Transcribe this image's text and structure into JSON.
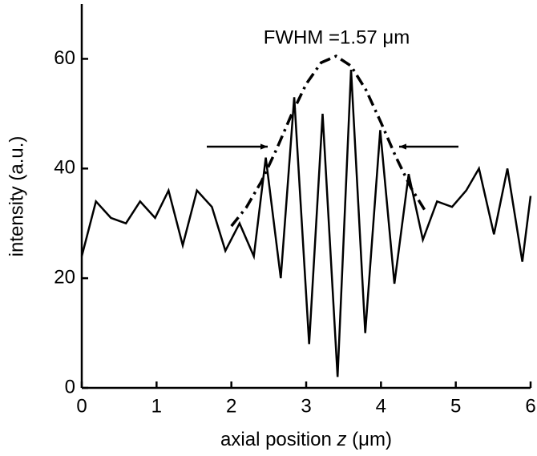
{
  "chart_data": {
    "type": "line",
    "x_label": [
      "axial position ",
      "z",
      " (μm)"
    ],
    "y_label": "intensity (a.u.)",
    "annotation": "FWHM =1.57 μm",
    "xlim": [
      0,
      6
    ],
    "xticks": [
      0,
      1,
      2,
      3,
      4,
      5,
      6
    ],
    "ylim": [
      0,
      70
    ],
    "yticks": [
      0,
      20,
      40,
      60
    ],
    "grid": false,
    "series": [
      {
        "style": "solid",
        "color": "#000000",
        "x": [
          0,
          0.19,
          0.39,
          0.59,
          0.78,
          0.98,
          1.16,
          1.35,
          1.54,
          1.74,
          1.92,
          2.11,
          2.3,
          2.46,
          2.66,
          2.84,
          3.04,
          3.22,
          3.42,
          3.6,
          3.79,
          3.99,
          4.18,
          4.37,
          4.56,
          4.75,
          4.95,
          5.14,
          5.31,
          5.51,
          5.69,
          5.89,
          6.0
        ],
        "values": [
          24,
          34,
          31,
          30,
          34,
          31,
          36,
          26,
          36,
          33,
          25,
          30,
          24,
          42,
          20,
          53,
          8,
          50,
          2,
          58,
          10,
          47,
          19,
          39,
          27,
          34,
          33,
          36,
          40,
          28,
          40,
          23,
          35
        ]
      },
      {
        "style": "dashdot",
        "color": "#000000",
        "x": [
          2.0,
          2.2,
          2.4,
          2.6,
          2.8,
          3.0,
          3.2,
          3.4,
          3.6,
          3.8,
          4.0,
          4.2,
          4.4,
          4.6
        ],
        "values": [
          29.5,
          32.9,
          37.6,
          43.4,
          49.7,
          55.4,
          59.3,
          60.5,
          58.7,
          54.3,
          48.4,
          42.1,
          36.5,
          32.1
        ]
      }
    ]
  }
}
